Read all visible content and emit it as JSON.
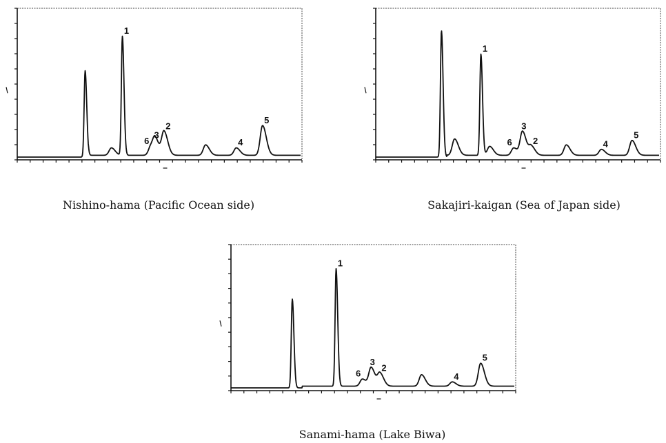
{
  "chart_data": [
    {
      "type": "line",
      "caption": "Nishino-hama (Pacific Ocean side)",
      "peaks": [
        {
          "x": 6.2,
          "y": 58
        },
        {
          "x": 8.6,
          "y": 5
        },
        {
          "x": 9.6,
          "y": 80,
          "label": "1"
        },
        {
          "x": 12.2,
          "y": 6,
          "label": "6"
        },
        {
          "x": 12.6,
          "y": 10,
          "label": "3"
        },
        {
          "x": 13.4,
          "y": 16,
          "label": "2"
        },
        {
          "x": 17.2,
          "y": 7
        },
        {
          "x": 20.0,
          "y": 5,
          "label": "4"
        },
        {
          "x": 22.4,
          "y": 20,
          "label": "5"
        }
      ]
    },
    {
      "type": "line",
      "caption": "Sakajiri-kaigan (Sea of Japan side)",
      "peaks": [
        {
          "x": 6.0,
          "y": 85
        },
        {
          "x": 7.2,
          "y": 11
        },
        {
          "x": 9.6,
          "y": 68,
          "label": "1"
        },
        {
          "x": 10.4,
          "y": 6
        },
        {
          "x": 12.6,
          "y": 5,
          "label": "6"
        },
        {
          "x": 13.4,
          "y": 16,
          "label": "3"
        },
        {
          "x": 14.2,
          "y": 6,
          "label": "2"
        },
        {
          "x": 17.4,
          "y": 7
        },
        {
          "x": 20.6,
          "y": 4,
          "label": "4"
        },
        {
          "x": 23.4,
          "y": 10,
          "label": "5"
        }
      ]
    },
    {
      "type": "line",
      "caption": "Sanami-hama (Lake Biwa)",
      "peaks": [
        {
          "x": 5.6,
          "y": 62
        },
        {
          "x": 9.6,
          "y": 82,
          "label": "1"
        },
        {
          "x": 12.0,
          "y": 5,
          "label": "6"
        },
        {
          "x": 12.8,
          "y": 13,
          "label": "3"
        },
        {
          "x": 13.6,
          "y": 9,
          "label": "2"
        },
        {
          "x": 17.4,
          "y": 8
        },
        {
          "x": 20.2,
          "y": 3,
          "label": "4"
        },
        {
          "x": 22.8,
          "y": 16,
          "label": "5"
        }
      ]
    }
  ]
}
